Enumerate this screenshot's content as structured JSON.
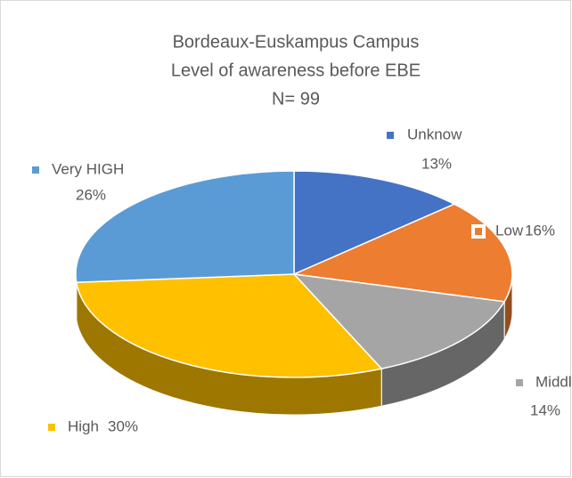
{
  "chart_data": {
    "type": "pie3d",
    "title": "Bordeaux-Euskampus Campus",
    "subtitle": "Level of awareness before EBE",
    "annotation": "N= 99",
    "categories": [
      "Unknow",
      "Low",
      "Middle",
      "High",
      "Very HIGH"
    ],
    "values": [
      13,
      16,
      14,
      30,
      26
    ],
    "value_labels": [
      "13%",
      "16%",
      "14%",
      "30%",
      "26%"
    ],
    "colors": [
      "#4472c4",
      "#ed7d31",
      "#a5a5a5",
      "#ffc000",
      "#5b9bd5"
    ]
  }
}
